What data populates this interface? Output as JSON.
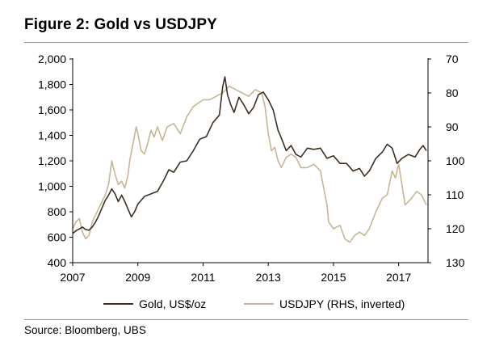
{
  "title": "Figure 2: Gold vs USDJPY",
  "source": "Source:  Bloomberg, UBS",
  "chart_data": {
    "type": "line",
    "title": "Figure 2: Gold vs USDJPY",
    "xlim": [
      2007,
      2017.9
    ],
    "x_ticks": [
      2007,
      2009,
      2011,
      2013,
      2015,
      2017
    ],
    "x_tick_labels": [
      "2007",
      "2009",
      "2011",
      "2013",
      "2015",
      "2017"
    ],
    "left_axis": {
      "label": "Gold, US$/oz",
      "ylim": [
        400,
        2000
      ],
      "ticks": [
        400,
        600,
        800,
        1000,
        1200,
        1400,
        1600,
        1800,
        2000
      ],
      "tick_labels": [
        "400",
        "600",
        "800",
        "1,000",
        "1,200",
        "1,400",
        "1,600",
        "1,800",
        "2,000"
      ]
    },
    "right_axis": {
      "label": "USDJPY (RHS, inverted)",
      "inverted": true,
      "ylim": [
        70,
        130
      ],
      "ticks": [
        70,
        80,
        90,
        100,
        110,
        120,
        130
      ],
      "tick_labels": [
        "70",
        "80",
        "90",
        "100",
        "110",
        "120",
        "130"
      ]
    },
    "series": [
      {
        "name": "Gold, US$/oz",
        "axis": "left",
        "color": "#3d2f22",
        "x": [
          2007.0,
          2007.1,
          2007.2,
          2007.3,
          2007.4,
          2007.5,
          2007.6,
          2007.7,
          2007.8,
          2007.9,
          2008.0,
          2008.1,
          2008.2,
          2008.3,
          2008.4,
          2008.5,
          2008.6,
          2008.7,
          2008.8,
          2008.9,
          2009.0,
          2009.2,
          2009.4,
          2009.6,
          2009.8,
          2009.95,
          2010.1,
          2010.3,
          2010.5,
          2010.7,
          2010.9,
          2011.1,
          2011.3,
          2011.5,
          2011.6,
          2011.67,
          2011.75,
          2011.85,
          2011.95,
          2012.1,
          2012.25,
          2012.4,
          2012.55,
          2012.7,
          2012.85,
          2013.0,
          2013.15,
          2013.3,
          2013.4,
          2013.55,
          2013.7,
          2013.85,
          2014.0,
          2014.2,
          2014.4,
          2014.6,
          2014.8,
          2015.0,
          2015.2,
          2015.4,
          2015.6,
          2015.8,
          2015.95,
          2016.1,
          2016.3,
          2016.5,
          2016.65,
          2016.8,
          2016.95,
          2017.1,
          2017.3,
          2017.5,
          2017.65,
          2017.75,
          2017.85
        ],
        "values": [
          630,
          650,
          665,
          680,
          660,
          655,
          680,
          720,
          770,
          830,
          890,
          930,
          980,
          940,
          880,
          930,
          880,
          820,
          760,
          800,
          860,
          920,
          940,
          960,
          1050,
          1130,
          1110,
          1190,
          1200,
          1280,
          1370,
          1390,
          1500,
          1560,
          1780,
          1860,
          1720,
          1640,
          1580,
          1700,
          1640,
          1570,
          1620,
          1720,
          1740,
          1680,
          1600,
          1440,
          1380,
          1280,
          1320,
          1250,
          1230,
          1300,
          1290,
          1300,
          1220,
          1240,
          1180,
          1180,
          1120,
          1140,
          1080,
          1120,
          1220,
          1270,
          1330,
          1300,
          1180,
          1220,
          1250,
          1230,
          1290,
          1320,
          1280
        ]
      },
      {
        "name": "USDJPY (RHS, inverted)",
        "axis": "right",
        "color": "#c8b594",
        "x": [
          2007.0,
          2007.1,
          2007.2,
          2007.3,
          2007.4,
          2007.5,
          2007.6,
          2007.7,
          2007.8,
          2007.9,
          2008.0,
          2008.1,
          2008.2,
          2008.3,
          2008.4,
          2008.5,
          2008.6,
          2008.7,
          2008.75,
          2008.85,
          2008.95,
          2009.0,
          2009.1,
          2009.2,
          2009.3,
          2009.4,
          2009.5,
          2009.6,
          2009.75,
          2009.9,
          2010.1,
          2010.3,
          2010.5,
          2010.7,
          2010.85,
          2011.0,
          2011.2,
          2011.4,
          2011.6,
          2011.8,
          2012.0,
          2012.2,
          2012.4,
          2012.6,
          2012.8,
          2012.9,
          2013.0,
          2013.1,
          2013.2,
          2013.3,
          2013.4,
          2013.55,
          2013.7,
          2013.85,
          2014.0,
          2014.2,
          2014.4,
          2014.6,
          2014.7,
          2014.8,
          2014.85,
          2015.0,
          2015.2,
          2015.35,
          2015.5,
          2015.65,
          2015.8,
          2015.95,
          2016.1,
          2016.3,
          2016.5,
          2016.65,
          2016.8,
          2016.9,
          2017.0,
          2017.2,
          2017.4,
          2017.55,
          2017.7,
          2017.85
        ],
        "values": [
          120,
          118,
          117,
          121,
          123,
          122,
          118,
          116,
          114,
          112,
          110,
          107,
          100,
          104,
          107,
          106,
          108,
          104,
          100,
          95,
          90,
          92,
          97,
          98,
          95,
          91,
          93,
          90,
          94,
          90,
          89,
          92,
          87,
          84,
          83,
          82,
          82,
          81,
          80,
          78,
          79,
          80,
          81,
          79,
          80,
          84,
          92,
          97,
          96,
          100,
          102,
          99,
          98,
          99,
          102,
          102,
          101,
          103,
          108,
          113,
          118,
          120,
          119,
          123,
          124,
          122,
          121,
          122,
          120,
          115,
          111,
          110,
          103,
          105,
          101,
          113,
          111,
          109,
          110,
          113
        ]
      }
    ]
  }
}
